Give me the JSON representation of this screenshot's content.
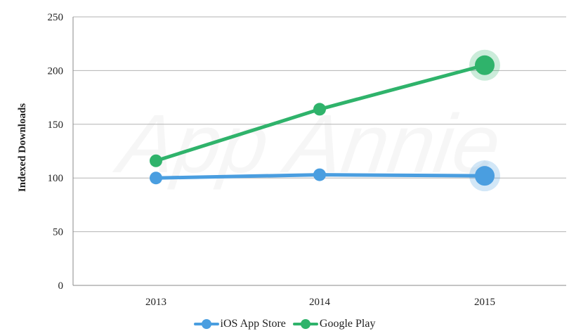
{
  "chart_data": {
    "type": "line",
    "title": "",
    "xlabel": "",
    "ylabel": "Indexed Downloads",
    "categories": [
      "2013",
      "2014",
      "2015"
    ],
    "ylim": [
      0,
      250
    ],
    "yticks": [
      "0",
      "50",
      "100",
      "150",
      "200",
      "250"
    ],
    "grid": true,
    "legend": "bottom",
    "watermark": "App Annie",
    "series": [
      {
        "name": "iOS App Store",
        "values": [
          100,
          103,
          102
        ],
        "color": "#4a9ee0"
      },
      {
        "name": "Google Play",
        "values": [
          116,
          164,
          205
        ],
        "color": "#2fb36b"
      }
    ]
  }
}
